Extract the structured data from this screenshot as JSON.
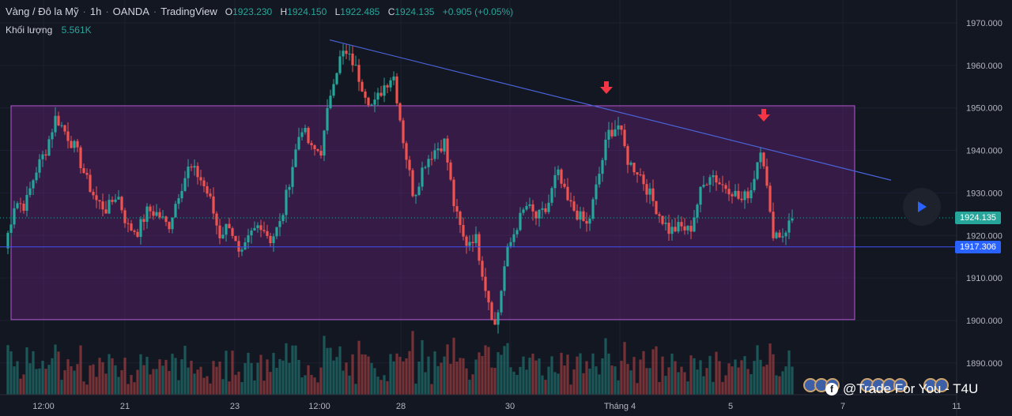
{
  "header": {
    "symbol": "Vàng / Đô la Mỹ",
    "interval": "1h",
    "broker": "OANDA",
    "platform": "TradingView",
    "open_key": "O",
    "open": "1923.230",
    "high_key": "H",
    "high": "1924.150",
    "low_key": "L",
    "low": "1922.485",
    "close_key": "C",
    "close": "1924.135",
    "change": "+0.905 (+0.05%)"
  },
  "volume": {
    "label": "Khối lượng",
    "value": "5.561K"
  },
  "price_axis": {
    "ticks": [
      "1970.000",
      "1960.000",
      "1950.000",
      "1940.000",
      "1930.000",
      "1920.000",
      "1910.000",
      "1900.000",
      "1890.000"
    ],
    "last_price_label": "1924.135",
    "support_label": "1917.306"
  },
  "time_axis": {
    "ticks": [
      "12:00",
      "21",
      "23",
      "12:00",
      "28",
      "30",
      "Tháng 4",
      "5",
      "7",
      "11"
    ]
  },
  "watermark": {
    "text": "@Trade For You - T4U",
    "icon": "facebook-icon"
  },
  "colors": {
    "up": "#26a69a",
    "down": "#ef5350",
    "range_box": "#9c27b0",
    "trendline": "#2962ff",
    "arrow": "#f23645"
  },
  "chart_data": {
    "type": "candlestick",
    "price_ylim": [
      1885,
      1973
    ],
    "range_box": {
      "top": 1950.5,
      "bottom": 1900.2
    },
    "support_level": 1917.306,
    "last_price": 1924.135,
    "trendline": {
      "from": 1966,
      "to": 1933
    },
    "resistance_markers": [
      "arrow-down",
      "arrow-down"
    ],
    "close_path": [
      1917,
      1928,
      1927,
      1935,
      1940,
      1948,
      1944,
      1940,
      1933,
      1928,
      1926,
      1930,
      1922,
      1921,
      1926,
      1925,
      1922,
      1930,
      1936,
      1934,
      1929,
      1920,
      1923,
      1914,
      1920,
      1923,
      1919,
      1923,
      1935,
      1946,
      1940,
      1940,
      1956,
      1963,
      1961,
      1955,
      1950,
      1955,
      1958,
      1942,
      1929,
      1937,
      1940,
      1942,
      1926,
      1918,
      1920,
      1908,
      1898,
      1915,
      1922,
      1927,
      1924,
      1926,
      1935,
      1928,
      1925,
      1922,
      1933,
      1944,
      1946,
      1937,
      1935,
      1930,
      1925,
      1921,
      1922,
      1921,
      1930,
      1935,
      1932,
      1931,
      1928,
      1931,
      1942,
      1921,
      1920,
      1924
    ]
  }
}
